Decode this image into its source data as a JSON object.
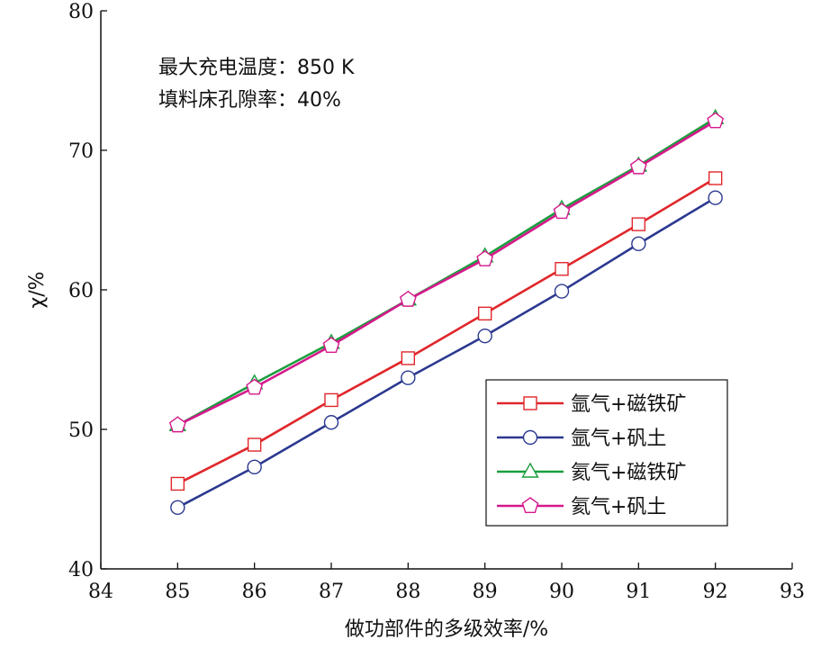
{
  "chart_data": {
    "type": "line",
    "xlabel": "做功部件的多级效率/%",
    "ylabel": "χ/%",
    "xlim": [
      84,
      93
    ],
    "ylim": [
      40,
      80
    ],
    "x_ticks": [
      "84",
      "85",
      "86",
      "87",
      "88",
      "89",
      "90",
      "91",
      "92",
      "93"
    ],
    "y_ticks": [
      "40",
      "50",
      "60",
      "70",
      "80"
    ],
    "x": [
      85,
      86,
      87,
      88,
      89,
      90,
      91,
      92
    ],
    "annotations": [
      "最大充电温度：850 K",
      "填料床孔隙率：40%"
    ],
    "legend_position": "lower-right",
    "grid": false,
    "series": [
      {
        "name": "氩气+磁铁矿",
        "color": "#e0262b",
        "marker": "square",
        "values": [
          46.1,
          48.9,
          52.1,
          55.1,
          58.3,
          61.5,
          64.7,
          68.0
        ]
      },
      {
        "name": "氩气+矾土",
        "color": "#2b3990",
        "marker": "circle",
        "values": [
          44.4,
          47.3,
          50.5,
          53.7,
          56.7,
          59.9,
          63.3,
          66.6
        ]
      },
      {
        "name": "氦气+磁铁矿",
        "color": "#1a9e3e",
        "marker": "triangle",
        "values": [
          50.3,
          53.3,
          56.2,
          59.3,
          62.4,
          65.8,
          68.9,
          72.3
        ]
      },
      {
        "name": "氦气+矾土",
        "color": "#d6188c",
        "marker": "pentagon",
        "values": [
          50.3,
          53.0,
          56.0,
          59.3,
          62.2,
          65.6,
          68.8,
          72.1
        ]
      }
    ]
  }
}
